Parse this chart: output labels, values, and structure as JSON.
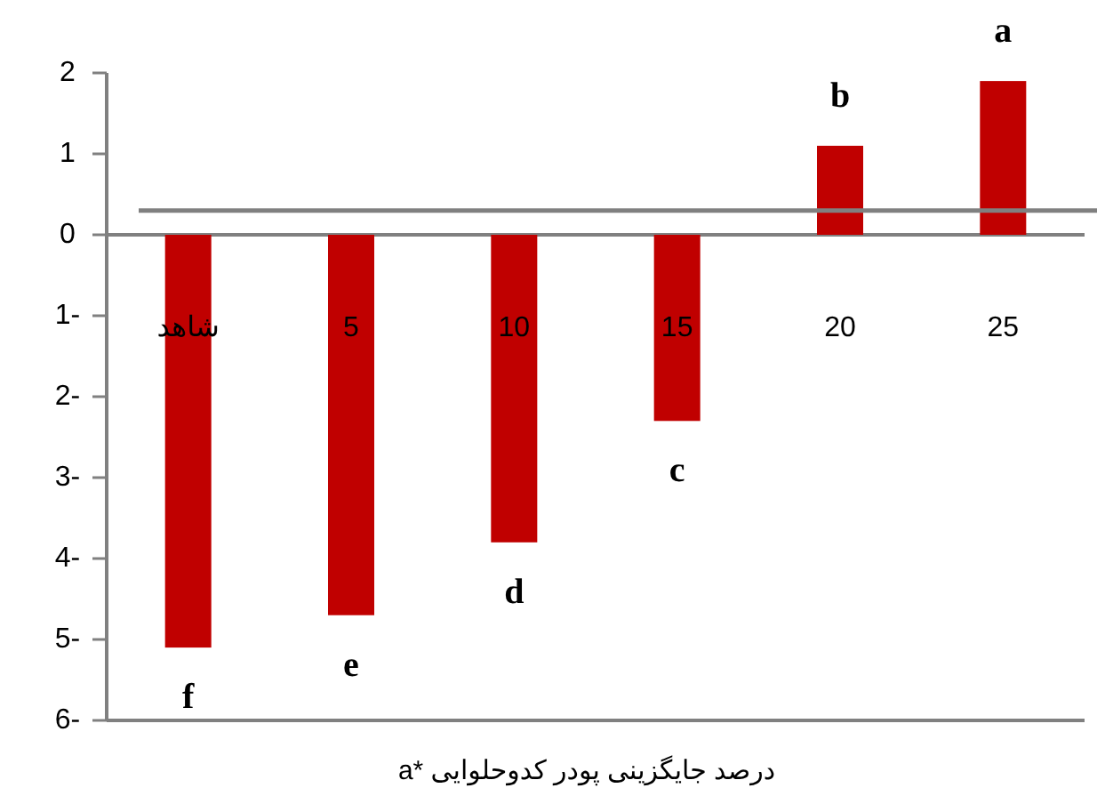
{
  "chart_data": {
    "type": "bar",
    "categories": [
      "شاهد",
      "5",
      "10",
      "15",
      "20",
      "25"
    ],
    "series": [
      {
        "color": "#c00000",
        "values": [
          -5.1,
          -4.7,
          -3.8,
          -2.3,
          1.1,
          1.9
        ]
      }
    ],
    "ylim": [
      -6,
      2
    ],
    "yticks": [
      2,
      1,
      0,
      {
        "value": -1,
        "label": "1-"
      },
      {
        "value": -2,
        "label": "2-"
      },
      {
        "value": -3,
        "label": "3-"
      },
      {
        "value": -4,
        "label": "4-"
      },
      {
        "value": -5,
        "label": "5-"
      },
      {
        "value": -6,
        "label": "6-"
      }
    ],
    "xlabel": "درصد جایگزینی پودر کدوحلوایی *a",
    "ref_lines": [
      {
        "axis": "y",
        "value": 0.3,
        "color": "#808080"
      }
    ],
    "annotations": [
      "f",
      "e",
      "d",
      "c",
      "b",
      "a"
    ]
  }
}
